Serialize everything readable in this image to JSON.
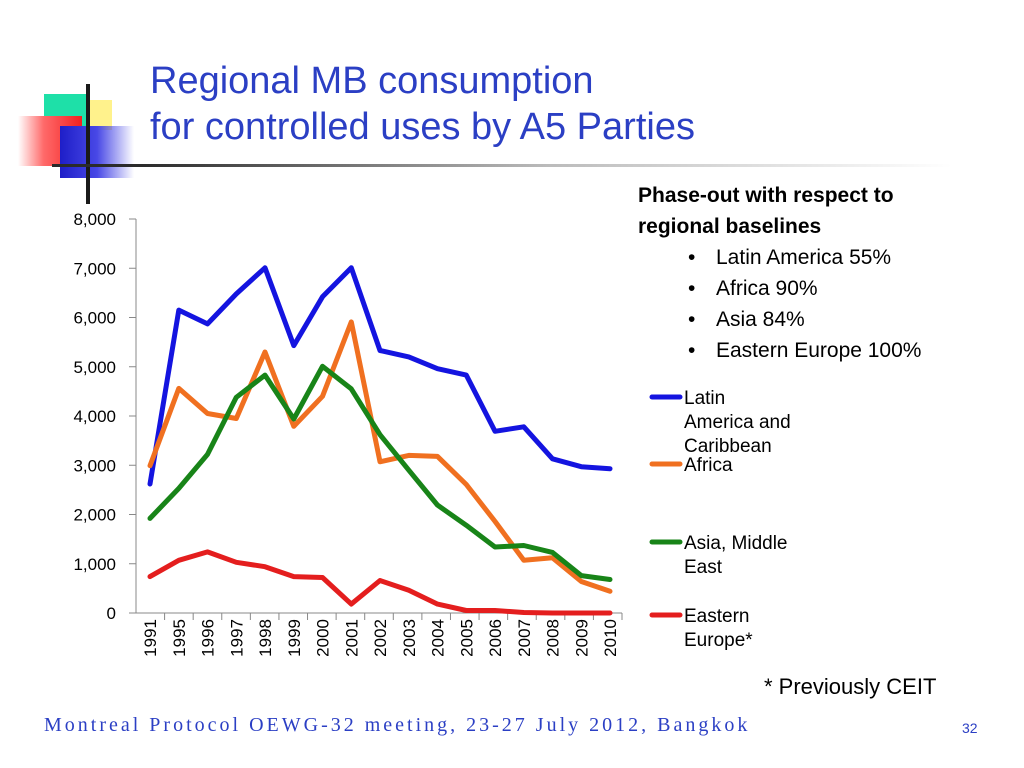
{
  "title": {
    "line1": "Regional MB consumption",
    "line2": "for controlled uses by A5 Parties"
  },
  "notes": {
    "heading_line1": "Phase-out with respect to",
    "heading_line2": "regional baselines",
    "bullets": [
      "Latin America 55%",
      "Africa 90%",
      "Asia 84%",
      "Eastern Europe 100%"
    ]
  },
  "footnote": "* Previously CEIT",
  "footer": "Montreal Protocol OEWG-32 meeting, 23-27 July 2012, Bangkok",
  "page_number": "32",
  "chart_data": {
    "type": "line",
    "title": "",
    "xlabel": "",
    "ylabel": "",
    "x": [
      "1991",
      "1995",
      "1996",
      "1997",
      "1998",
      "1999",
      "2000",
      "2001",
      "2002",
      "2003",
      "2004",
      "2005",
      "2006",
      "2007",
      "2008",
      "2009",
      "2010"
    ],
    "ylim": [
      0,
      8000
    ],
    "yticks": [
      "0",
      "1,000",
      "2,000",
      "3,000",
      "4,000",
      "5,000",
      "6,000",
      "7,000",
      "8,000"
    ],
    "grid": false,
    "legend_position": "right",
    "series": [
      {
        "name": "Latin America and Caribbean",
        "legend_lines": [
          "Latin",
          "America and",
          "Caribbean"
        ],
        "color": "#1414e0",
        "values": [
          2620,
          6150,
          5870,
          6480,
          7010,
          5430,
          6420,
          7010,
          5330,
          5200,
          4960,
          4830,
          3690,
          3780,
          3130,
          2970,
          2930
        ]
      },
      {
        "name": "Africa",
        "legend_lines": [
          "Africa"
        ],
        "color": "#f07020",
        "values": [
          2990,
          4560,
          4050,
          3950,
          5300,
          3790,
          4400,
          5910,
          3070,
          3200,
          3180,
          2610,
          1860,
          1070,
          1120,
          640,
          440
        ]
      },
      {
        "name": "Asia, Middle East",
        "legend_lines": [
          "Asia, Middle",
          "East"
        ],
        "color": "#188418",
        "values": [
          1920,
          2530,
          3220,
          4380,
          4830,
          3940,
          5010,
          4550,
          3620,
          2900,
          2190,
          1780,
          1340,
          1370,
          1230,
          760,
          680
        ]
      },
      {
        "name": "Eastern Europe*",
        "legend_lines": [
          "Eastern",
          "Europe*"
        ],
        "color": "#e41e1e",
        "values": [
          740,
          1070,
          1240,
          1030,
          940,
          740,
          720,
          180,
          660,
          460,
          180,
          50,
          50,
          10,
          0,
          0,
          0
        ]
      }
    ]
  }
}
